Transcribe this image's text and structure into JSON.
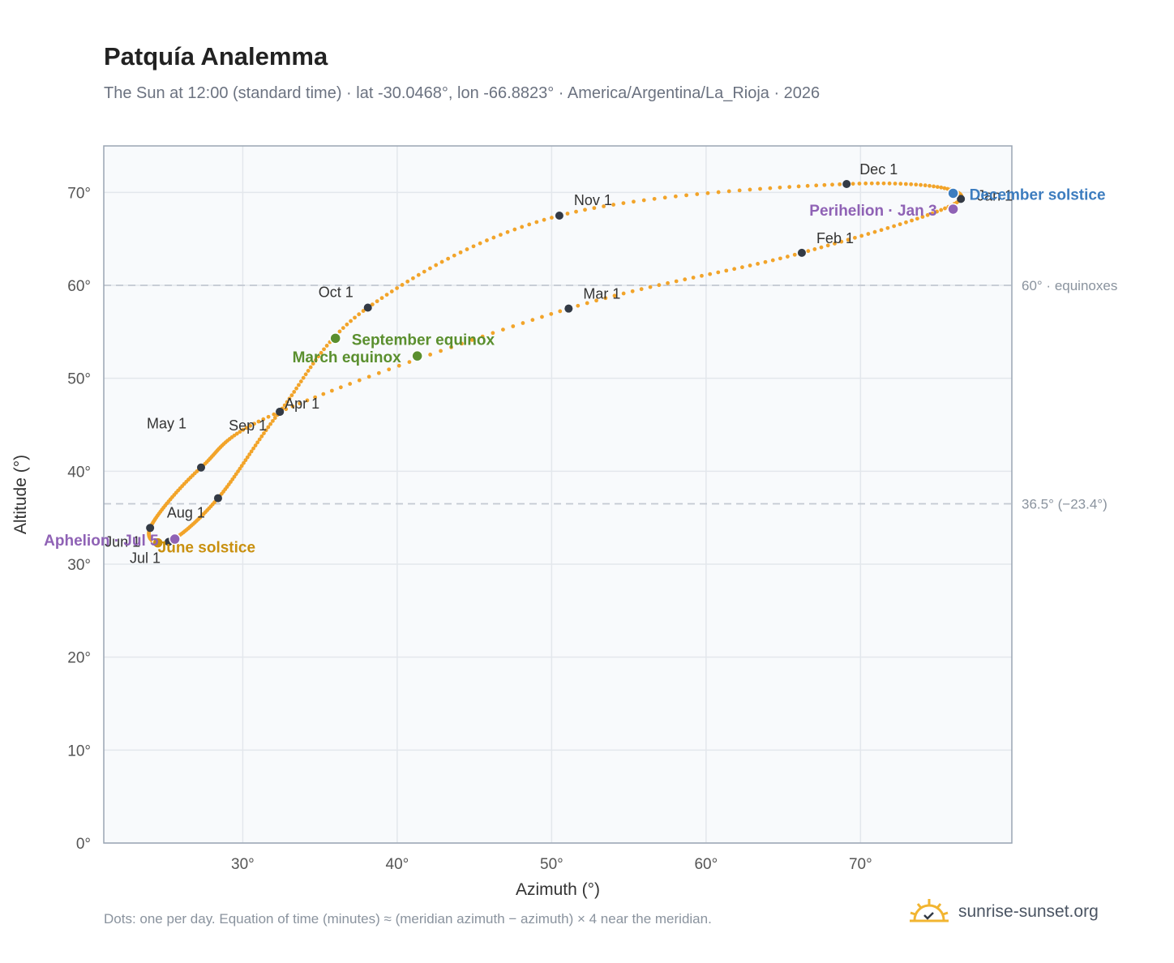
{
  "header": {
    "title": "Patquía Analemma",
    "subtitle": "The Sun at 12:00 (standard time) · lat -30.0468°, lon -66.8823° · America/Argentina/La_Rioja · 2026"
  },
  "footer": {
    "note": "Dots: one per day. Equation of time (minutes) ≈ (meridian azimuth − azimuth) × 4 near the meridian.",
    "brand": "sunrise-sunset.org",
    "brand_icon": "sunrise-logo-icon"
  },
  "colors": {
    "path": "#f2a42a",
    "month_marker": "#333a45",
    "equinox": "#5a8f2e",
    "solstice_june": "#c9900f",
    "solstice_december": "#3d7dbf",
    "apsis": "#8f62b5",
    "reference_line": "#c3c9d2",
    "plot_bg": "#f8fafc"
  },
  "chart_data": {
    "type": "scatter",
    "xlabel": "Azimuth (°)",
    "ylabel": "Altitude (°)",
    "xlim": [
      21,
      79.8
    ],
    "ylim": [
      0,
      75
    ],
    "xticks": [
      30,
      40,
      50,
      60,
      70
    ],
    "yticks": [
      0,
      10,
      20,
      30,
      40,
      50,
      60,
      70
    ],
    "xtick_labels": [
      "30°",
      "40°",
      "50°",
      "60°",
      "70°"
    ],
    "ytick_labels": [
      "0°",
      "10°",
      "20°",
      "30°",
      "40°",
      "50°",
      "60°",
      "70°"
    ],
    "grid": true,
    "reference_lines": [
      {
        "y": 60,
        "label": "60° · equinoxes"
      },
      {
        "y": 36.5,
        "label": "36.5° (−23.4°)"
      }
    ],
    "month_markers": [
      {
        "label": "Jan 1",
        "x": 76.5,
        "y": 69.3
      },
      {
        "label": "Feb 1",
        "x": 66.2,
        "y": 63.5
      },
      {
        "label": "Mar 1",
        "x": 51.1,
        "y": 57.5
      },
      {
        "label": "Apr 1",
        "x": 32.4,
        "y": 46.4
      },
      {
        "label": "May 1",
        "x": 27.3,
        "y": 40.4
      },
      {
        "label": "Jun 1",
        "x": 24.0,
        "y": 33.9
      },
      {
        "label": "Jul 1",
        "x": 25.2,
        "y": 32.4
      },
      {
        "label": "Aug 1",
        "x": 28.4,
        "y": 37.1
      },
      {
        "label": "Sep 1",
        "x": 32.4,
        "y": 46.4
      },
      {
        "label": "Oct 1",
        "x": 38.1,
        "y": 57.6
      },
      {
        "label": "Nov 1",
        "x": 50.5,
        "y": 67.5
      },
      {
        "label": "Dec 1",
        "x": 69.1,
        "y": 70.9
      }
    ],
    "events": [
      {
        "label": "March equinox",
        "x": 41.3,
        "y": 52.4,
        "color": "#5a8f2e"
      },
      {
        "label": "September equinox",
        "x": 36.0,
        "y": 54.3,
        "color": "#5a8f2e"
      },
      {
        "label": "June solstice",
        "x": 24.5,
        "y": 32.3,
        "color": "#c9900f"
      },
      {
        "label": "December solstice",
        "x": 76.0,
        "y": 69.9,
        "color": "#3d7dbf"
      },
      {
        "label": "Perihelion · Jan 3",
        "x": 76.0,
        "y": 68.2,
        "color": "#8f62b5"
      },
      {
        "label": "Aphelion · Jul 5",
        "x": 25.6,
        "y": 32.7,
        "color": "#8f62b5"
      }
    ]
  }
}
